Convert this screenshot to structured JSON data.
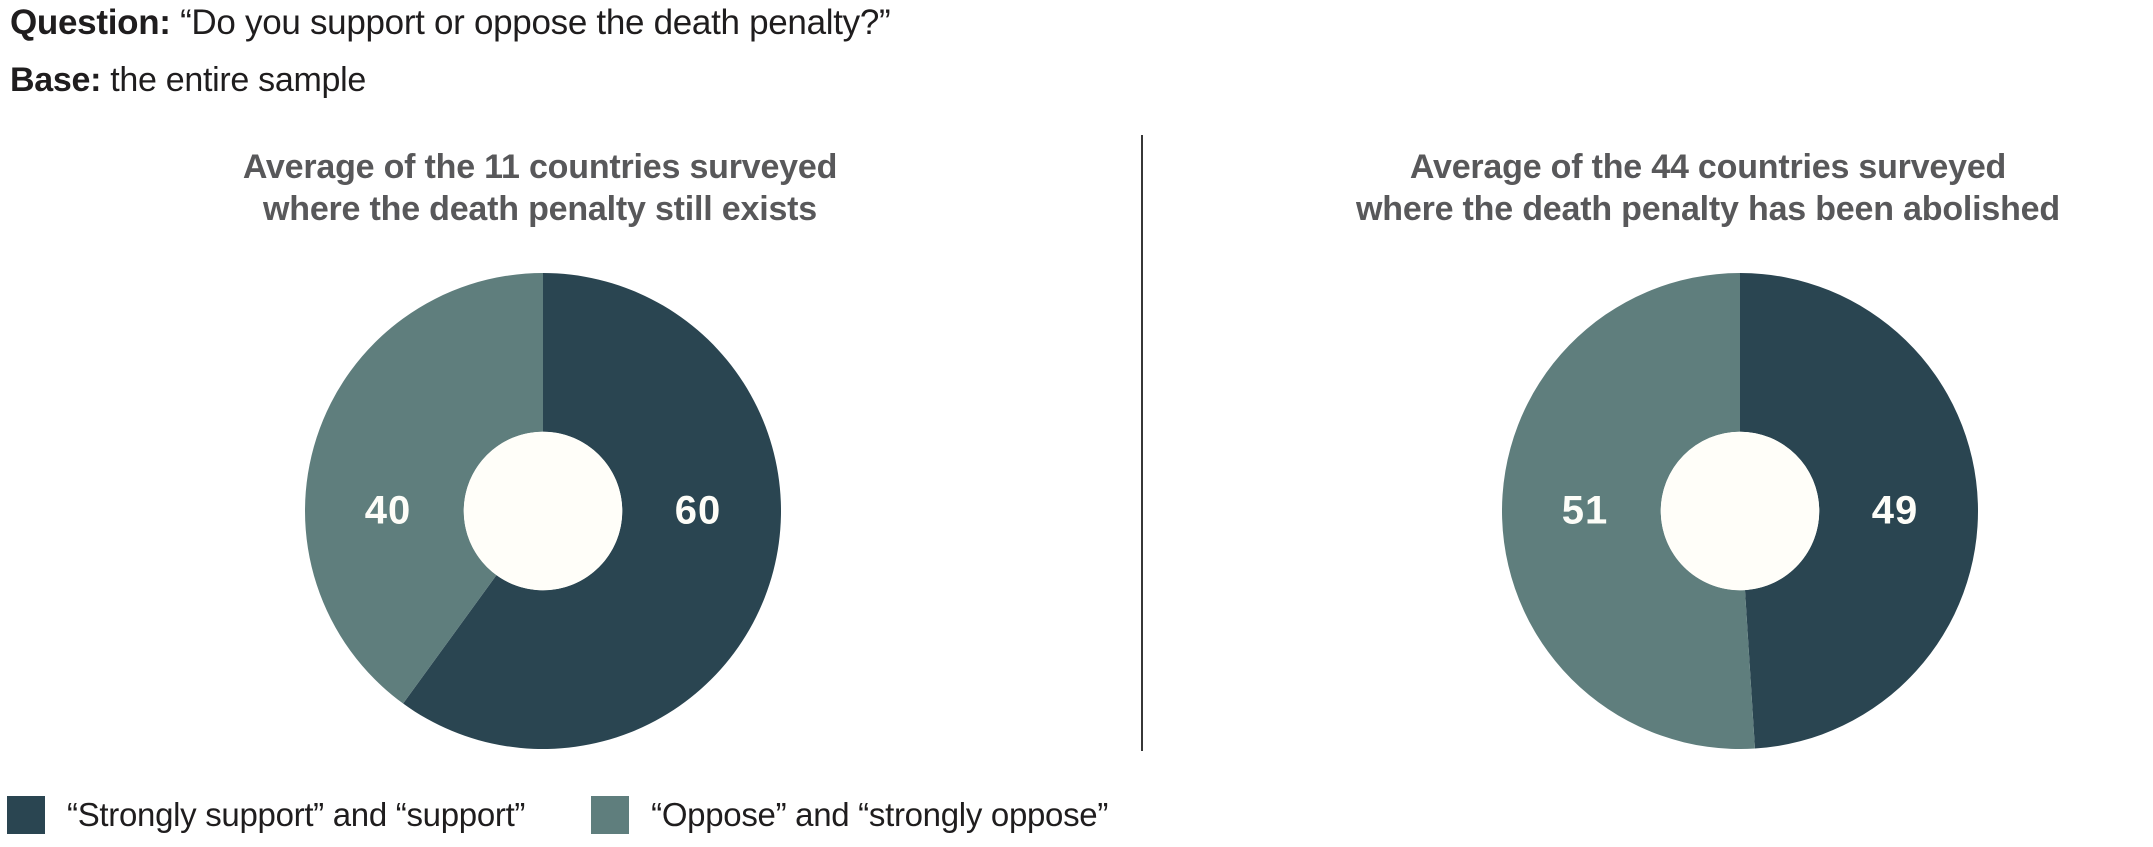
{
  "header": {
    "question_label": "Question:",
    "question_text": "“Do you support or oppose the death penalty?”",
    "base_label": "Base:",
    "base_text": "the entire sample"
  },
  "palette": {
    "support_color": "#2a4551",
    "oppose_color": "#5f7e7d",
    "title_text_color": "#58585a",
    "header_text_color": "#1f1d1e",
    "value_label_color": "#fdfdf8",
    "divider_color": "#373737",
    "hole_color": "#fffef9"
  },
  "chart_data": [
    {
      "type": "pie",
      "variant": "donut",
      "title": "Average of the 11 countries surveyed\nwhere the death penalty still exists",
      "categories": [
        "“Strongly support” and “support”",
        "“Oppose” and “strongly oppose”"
      ],
      "values": [
        60,
        40
      ],
      "colors": [
        "#2a4551",
        "#5f7e7d"
      ],
      "start_angle_deg": 0,
      "direction": "clockwise",
      "inner_radius_ratio": 0.333,
      "hole_color": "#fffef9",
      "legend_position": "bottom-left",
      "value_labels_shown": true
    },
    {
      "type": "pie",
      "variant": "donut",
      "title": "Average of the 44 countries surveyed\nwhere the death penalty has been abolished",
      "categories": [
        "“Strongly support” and “support”",
        "“Oppose” and “strongly oppose”"
      ],
      "values": [
        49,
        51
      ],
      "colors": [
        "#2a4551",
        "#5f7e7d"
      ],
      "start_angle_deg": 0,
      "direction": "clockwise",
      "inner_radius_ratio": 0.333,
      "hole_color": "#fffef9",
      "legend_position": "bottom-left",
      "value_labels_shown": true
    }
  ],
  "legend": {
    "items": [
      {
        "label": "“Strongly support” and “support”",
        "color": "#2a4551"
      },
      {
        "label": "“Oppose” and “strongly oppose”",
        "color": "#5f7e7d"
      }
    ]
  }
}
